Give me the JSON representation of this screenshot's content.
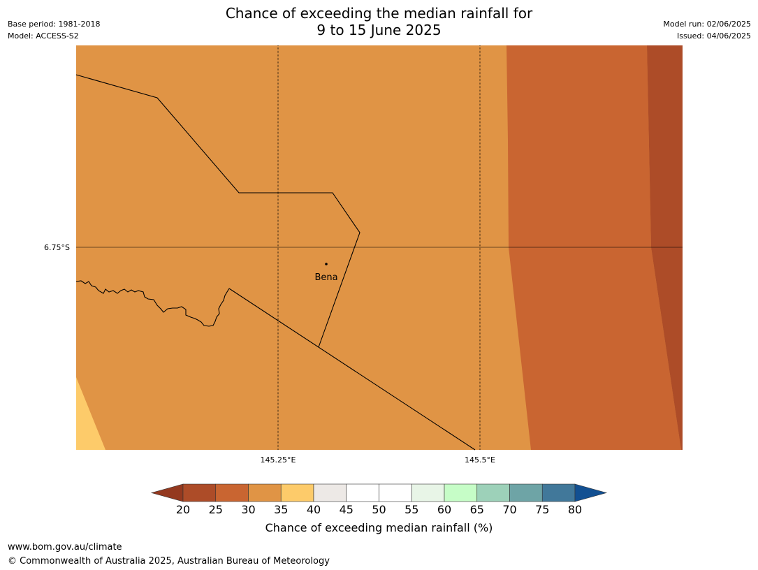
{
  "header": {
    "title_line1": "Chance of exceeding the median rainfall for",
    "title_line2": "9 to 15 June 2025",
    "base_period": "Base period: 1981-2018",
    "model": "Model: ACCESS-S2",
    "model_run": "Model run: 02/06/2025",
    "issued": "Issued: 04/06/2025"
  },
  "map": {
    "lat_label": "6.75°S",
    "lon_labels": [
      "145.25°E",
      "145.5°E"
    ],
    "place_label": "Bena",
    "zones": [
      {
        "range": "30-35",
        "color": "#e09445"
      },
      {
        "range": "25-30",
        "color": "#c96531"
      },
      {
        "range": "20-25",
        "color": "#ad4c28"
      },
      {
        "range": "35-40",
        "color": "#fdcb6a"
      }
    ]
  },
  "colorbar": {
    "title": "Chance of exceeding median rainfall (%)",
    "ticks": [
      "20",
      "25",
      "30",
      "35",
      "40",
      "45",
      "50",
      "55",
      "60",
      "65",
      "70",
      "75",
      "80"
    ],
    "colors": [
      "#ad4c28",
      "#c96531",
      "#e09445",
      "#fdcb6a",
      "#ede9e6",
      "#ffffff",
      "#ffffff",
      "#e8f5e7",
      "#c6fdc7",
      "#9dd1b9",
      "#6ea4a6",
      "#41789a"
    ],
    "low_extend_color": "#94391f",
    "high_extend_color": "#125092"
  },
  "footer": {
    "url": "www.bom.gov.au/climate",
    "copyright": "© Commonwealth of Australia 2025, Australian Bureau of Meteorology"
  }
}
